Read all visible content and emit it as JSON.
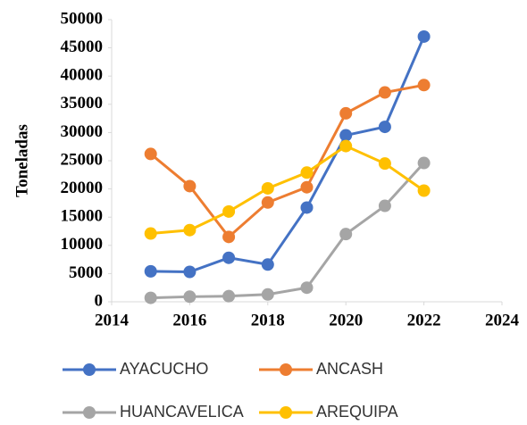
{
  "chart_data": {
    "type": "line",
    "ylabel": "Toneladas",
    "x": [
      2015,
      2016,
      2017,
      2018,
      2019,
      2020,
      2021,
      2022
    ],
    "series": [
      {
        "name": "AYACUCHO",
        "color": "#4472c4",
        "values": [
          5400,
          5300,
          7800,
          6600,
          16700,
          29500,
          31000,
          47000
        ]
      },
      {
        "name": "ANCASH",
        "color": "#ed7d31",
        "values": [
          26200,
          20500,
          11500,
          17600,
          20300,
          33400,
          37100,
          38400
        ]
      },
      {
        "name": "HUANCAVELICA",
        "color": "#a5a5a5",
        "values": [
          700,
          900,
          1000,
          1300,
          2500,
          12000,
          17000,
          24600
        ]
      },
      {
        "name": "AREQUIPA",
        "color": "#ffc000",
        "values": [
          12100,
          12700,
          16000,
          20100,
          22900,
          27600,
          24500,
          19700
        ]
      }
    ],
    "xlim": [
      2014,
      2024
    ],
    "xticks": [
      2014,
      2016,
      2018,
      2020,
      2022,
      2024
    ],
    "ylim": [
      0,
      50000
    ],
    "yticks": [
      0,
      5000,
      10000,
      15000,
      20000,
      25000,
      30000,
      35000,
      40000,
      45000,
      50000
    ]
  }
}
